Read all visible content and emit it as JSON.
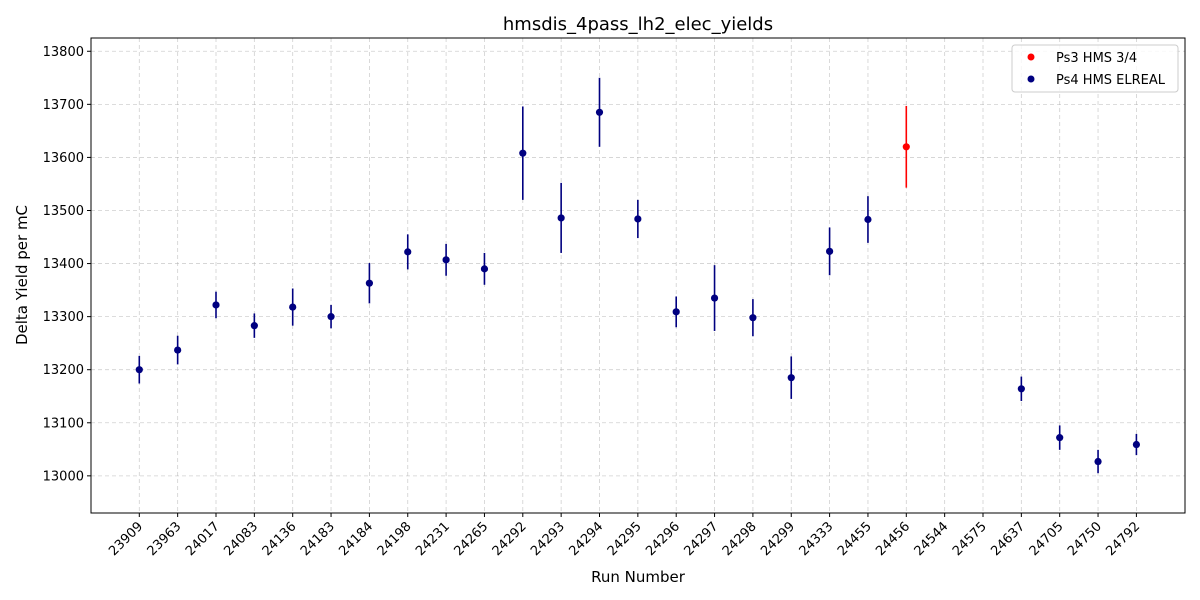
{
  "chart_data": {
    "type": "scatter",
    "title": "hmsdis_4pass_lh2_elec_yields",
    "xlabel": "Run Number",
    "ylabel": "Delta Yield per mC",
    "categories": [
      "23909",
      "23963",
      "24017",
      "24083",
      "24136",
      "24183",
      "24184",
      "24198",
      "24231",
      "24265",
      "24292",
      "24293",
      "24294",
      "24295",
      "24296",
      "24297",
      "24298",
      "24299",
      "24333",
      "24455",
      "24456",
      "24544",
      "24575",
      "24637",
      "24705",
      "24750",
      "24792"
    ],
    "ylim": [
      12930,
      13825
    ],
    "yticks": [
      13000,
      13100,
      13200,
      13300,
      13400,
      13500,
      13600,
      13700,
      13800
    ],
    "grid": true,
    "legend_position": "top-right",
    "series": [
      {
        "name": "Ps3 HMS 3/4",
        "color": "#ff0000",
        "points": [
          {
            "x": "24456",
            "y": 13620,
            "err": 77
          }
        ]
      },
      {
        "name": "Ps4 HMS ELREAL",
        "color": "#000080",
        "points": [
          {
            "x": "23909",
            "y": 13200,
            "err": 26
          },
          {
            "x": "23963",
            "y": 13237,
            "err": 27
          },
          {
            "x": "24017",
            "y": 13322,
            "err": 25
          },
          {
            "x": "24083",
            "y": 13283,
            "err": 23
          },
          {
            "x": "24136",
            "y": 13318,
            "err": 35
          },
          {
            "x": "24183",
            "y": 13300,
            "err": 22
          },
          {
            "x": "24184",
            "y": 13363,
            "err": 38
          },
          {
            "x": "24198",
            "y": 13422,
            "err": 33
          },
          {
            "x": "24231",
            "y": 13407,
            "err": 30
          },
          {
            "x": "24265",
            "y": 13390,
            "err": 30
          },
          {
            "x": "24292",
            "y": 13608,
            "err": 88
          },
          {
            "x": "24293",
            "y": 13486,
            "err": 66
          },
          {
            "x": "24294",
            "y": 13685,
            "err": 65
          },
          {
            "x": "24295",
            "y": 13484,
            "err": 36
          },
          {
            "x": "24296",
            "y": 13309,
            "err": 29
          },
          {
            "x": "24297",
            "y": 13335,
            "err": 62
          },
          {
            "x": "24298",
            "y": 13298,
            "err": 35
          },
          {
            "x": "24299",
            "y": 13185,
            "err": 40
          },
          {
            "x": "24333",
            "y": 13423,
            "err": 45
          },
          {
            "x": "24455",
            "y": 13483,
            "err": 44
          },
          {
            "x": "24637",
            "y": 13164,
            "err": 23
          },
          {
            "x": "24705",
            "y": 13072,
            "err": 23
          },
          {
            "x": "24750",
            "y": 13027,
            "err": 22
          },
          {
            "x": "24792",
            "y": 13059,
            "err": 20
          }
        ]
      }
    ]
  }
}
